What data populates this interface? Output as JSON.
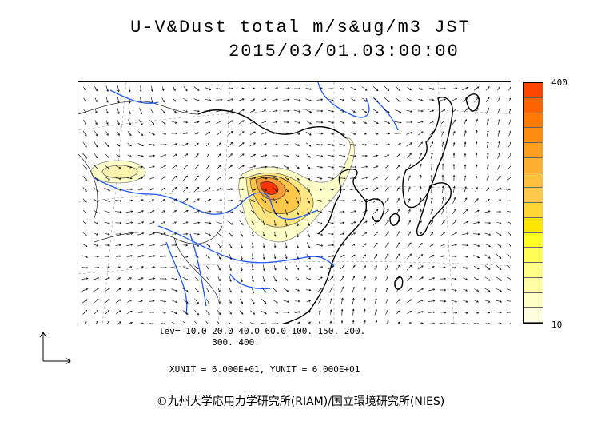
{
  "title": {
    "line1": "U-V&Dust total m/s&ug/m3 JST",
    "line2": "2015/03/01.03:00:00"
  },
  "colorbar": {
    "max_label": "400",
    "min_label": "10",
    "colors": [
      "#ffffe0",
      "#ffffc4",
      "#fffea6",
      "#ffff88",
      "#ffff55",
      "#ffff22",
      "#ffe600",
      "#ffd633",
      "#ffc84a",
      "#ffbf40",
      "#ffb030",
      "#ff9f20",
      "#ff8c10",
      "#ff7a00",
      "#ff6200",
      "#ff4500"
    ]
  },
  "levels": {
    "line1": "lev= 10.0 20.0 40.0 60.0 100. 150. 200.",
    "line2": "300. 400."
  },
  "units": "XUNIT = 6.000E+01, YUNIT = 6.000E+01",
  "copyright": "©九州大学応用力学研究所(RIAM)/国立環境研究所(NIES)",
  "colors": {
    "coast": "#000000",
    "rivers": "#1e5aff",
    "plume_low": "#ffffc8",
    "plume_mid": "#ffe680",
    "plume_high": "#ff9933",
    "plume_peak": "#ff3300"
  }
}
